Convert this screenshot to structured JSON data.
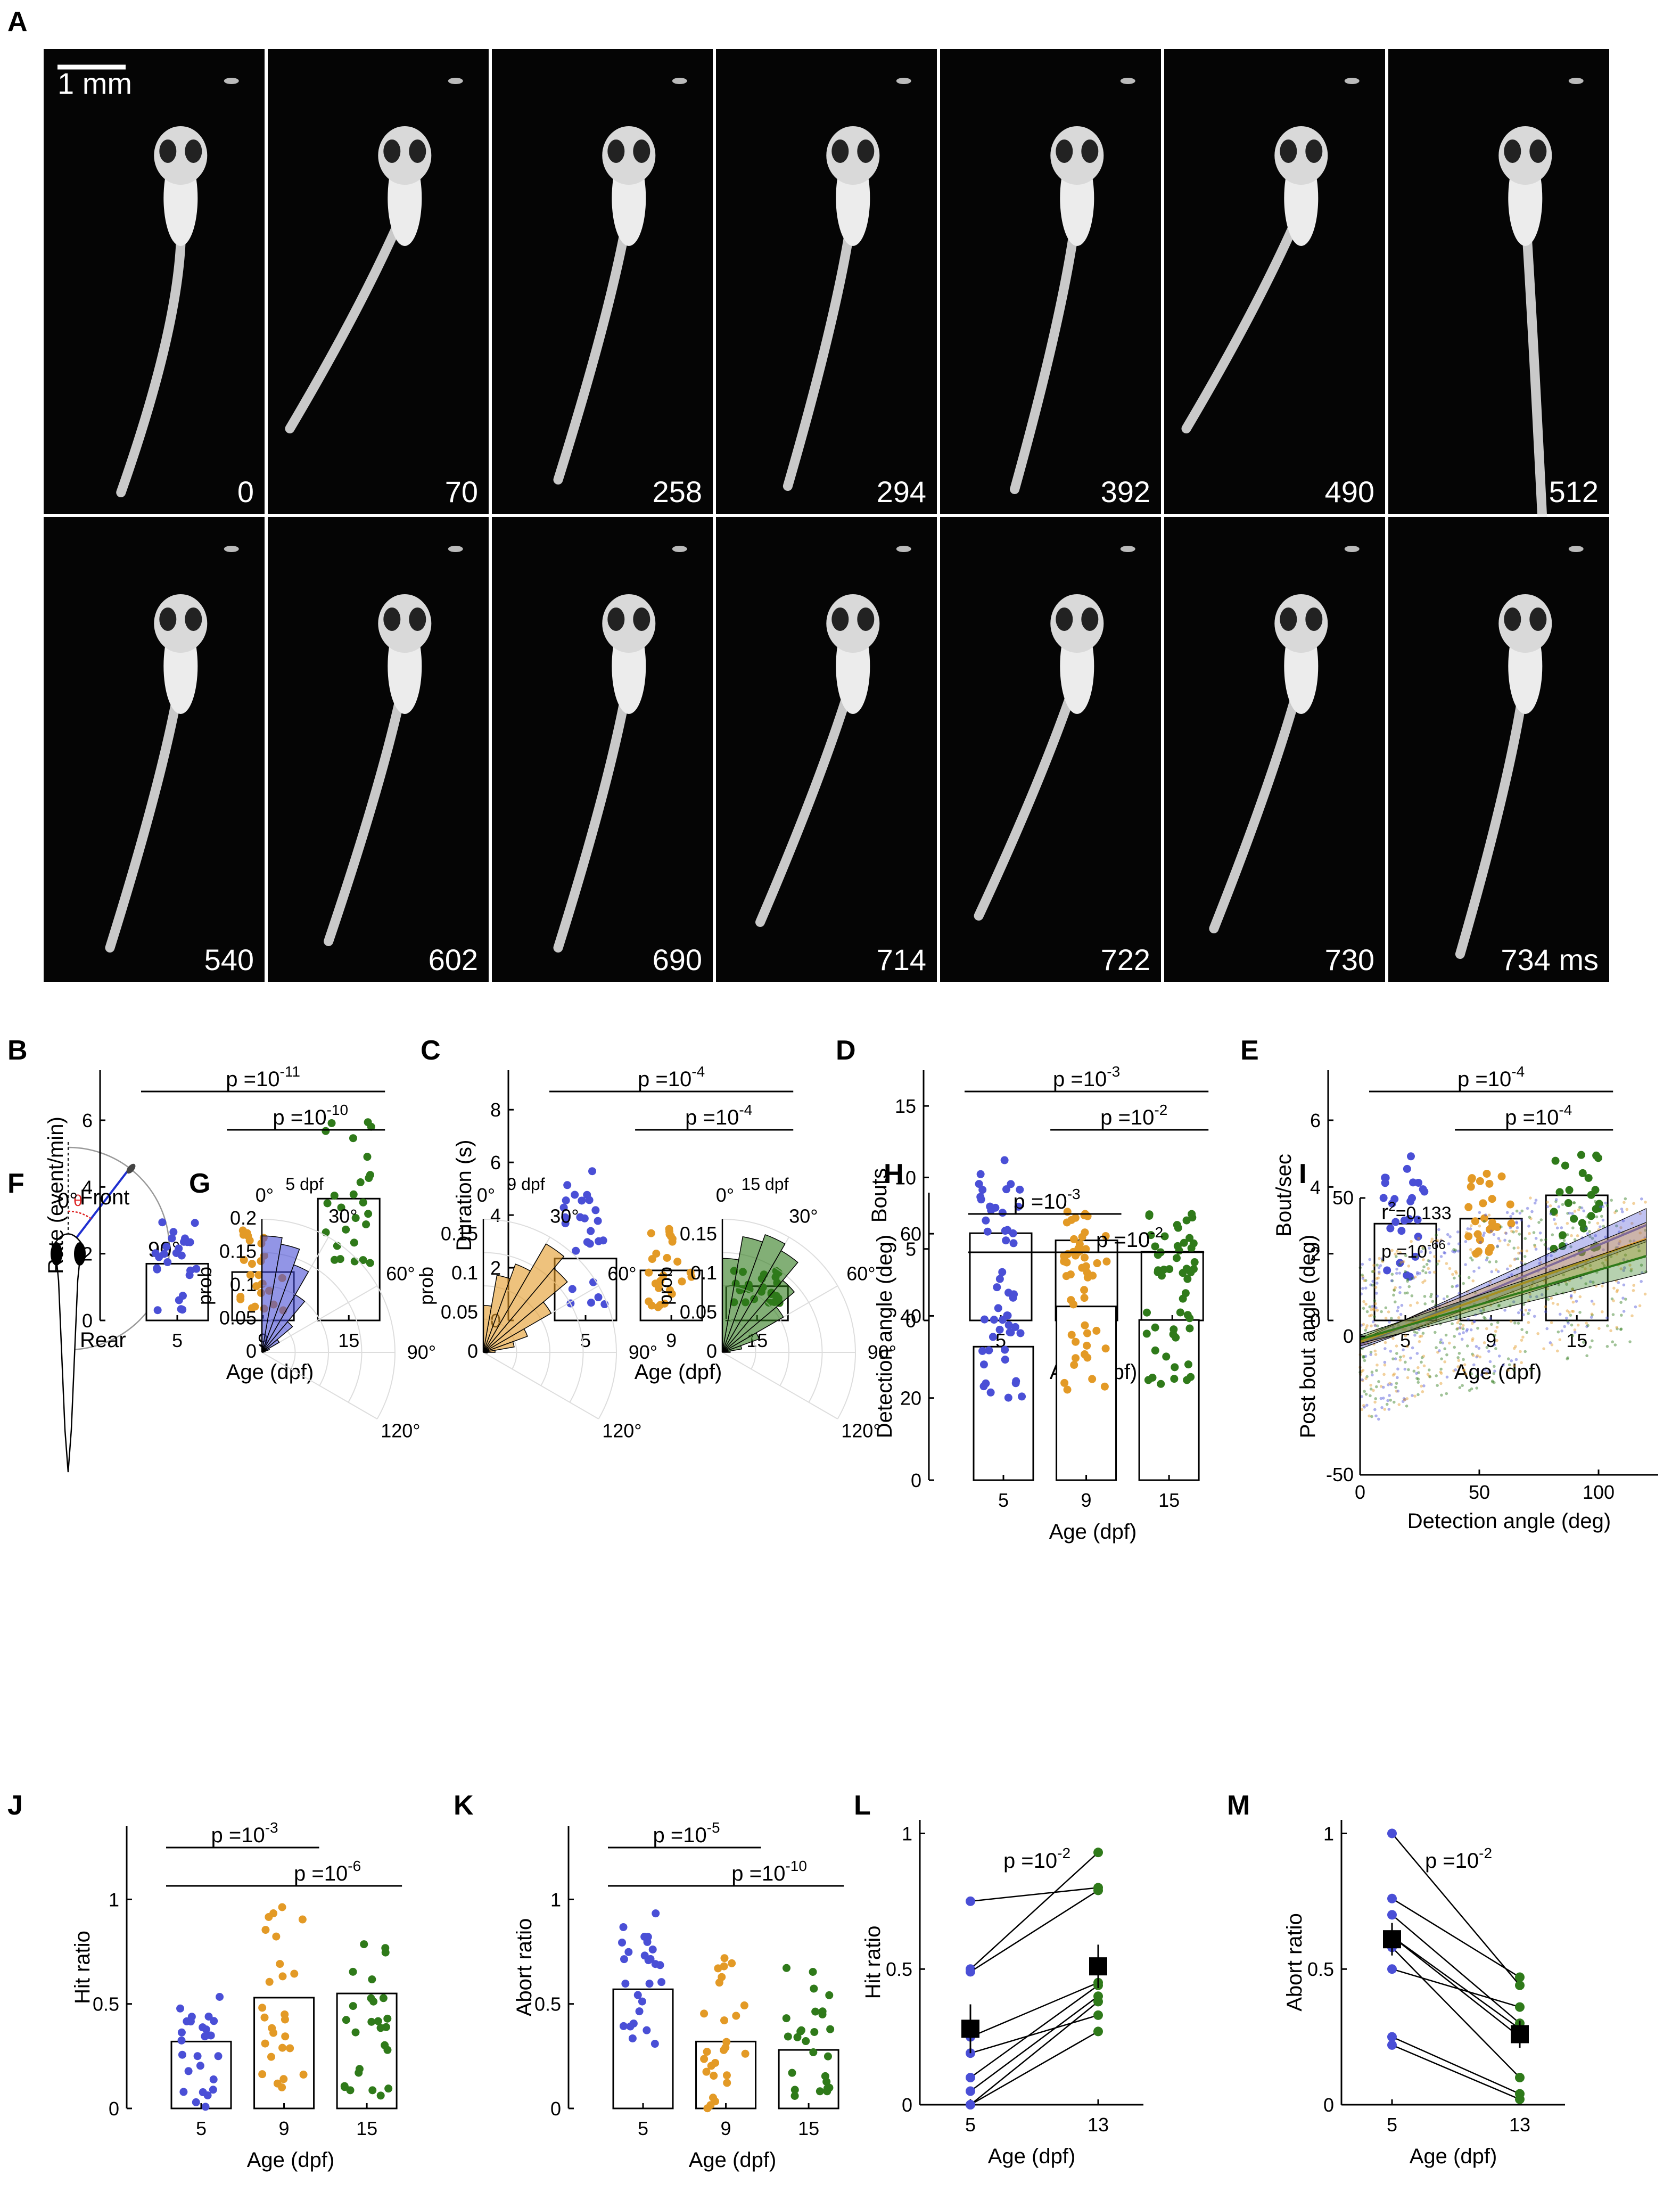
{
  "colors": {
    "c5": "#4a4fd6",
    "c9": "#e39a26",
    "c15": "#2f7a1a",
    "black": "#000000",
    "fish": "#ececec"
  },
  "panel_letters": {
    "A": "A",
    "B": "B",
    "C": "C",
    "D": "D",
    "E": "E",
    "F": "F",
    "G": "G",
    "H": "H",
    "I": "I",
    "J": "J",
    "K": "K",
    "L": "L",
    "M": "M"
  },
  "panelA": {
    "scale_label": "1 mm",
    "frame_times": [
      "0",
      "70",
      "258",
      "294",
      "392",
      "490",
      "512",
      "540",
      "602",
      "690",
      "714",
      "722",
      "730",
      "734 ms"
    ],
    "tail_curl": [
      0,
      1,
      0.2,
      0.1,
      0.05,
      1,
      -0.6,
      0.2,
      0.3,
      0.2,
      0.6,
      0.7,
      0.5,
      0.1
    ]
  },
  "schematicF": {
    "zero": "0°",
    "front": "Front",
    "ninety": "90°",
    "rear": "Rear",
    "theta": "θ"
  },
  "chart_data": [
    {
      "panel": "B",
      "type": "bar",
      "categories": [
        "5",
        "9",
        "15"
      ],
      "values": [
        1.7,
        1.45,
        3.65
      ],
      "xlabel": "Age (dpf)",
      "ylabel": "Rate (event/min)",
      "ylim": [
        0,
        7.5
      ],
      "yticks": [
        "0",
        "2",
        "4",
        "6"
      ],
      "pvalues": [
        {
          "text": "p =10",
          "exp": "-11",
          "from": 0,
          "to": 2
        },
        {
          "text": "p =10",
          "exp": "-10",
          "from": 1,
          "to": 2
        }
      ],
      "spread": [
        [
          0.3,
          3.2
        ],
        [
          0.3,
          2.8
        ],
        [
          1.5,
          6.0
        ]
      ]
    },
    {
      "panel": "C",
      "type": "bar",
      "categories": [
        "5",
        "9",
        "15"
      ],
      "values": [
        2.35,
        1.9,
        1.3
      ],
      "xlabel": "Age (dpf)",
      "ylabel": "Duration (s)",
      "ylim": [
        0,
        9.5
      ],
      "yticks": [
        "0",
        "2",
        "4",
        "6",
        "8"
      ],
      "pvalues": [
        {
          "text": "p =10",
          "exp": "-4",
          "from": 0,
          "to": 2
        },
        {
          "text": "p =10",
          "exp": "-4",
          "from": 1,
          "to": 2
        }
      ],
      "spread": [
        [
          0.6,
          6.2
        ],
        [
          0.5,
          3.6
        ],
        [
          0.6,
          1.9
        ]
      ]
    },
    {
      "panel": "D",
      "type": "bar",
      "categories": [
        "5",
        "9",
        "15"
      ],
      "values": [
        6.1,
        5.6,
        4.8
      ],
      "xlabel": "Age (dpf)",
      "ylabel": "Bouts",
      "ylim": [
        0,
        17.5
      ],
      "yticks": [
        "0",
        "5",
        "10",
        "15"
      ],
      "pvalues": [
        {
          "text": "p =10",
          "exp": "-3",
          "from": 0,
          "to": 2
        },
        {
          "text": "p =10",
          "exp": "-2",
          "from": 1,
          "to": 2
        }
      ],
      "spread": [
        [
          1.8,
          12.2
        ],
        [
          3.0,
          7.8
        ],
        [
          3.3,
          7.5
        ]
      ]
    },
    {
      "panel": "E",
      "type": "bar",
      "categories": [
        "5",
        "9",
        "15"
      ],
      "values": [
        2.9,
        3.05,
        3.75
      ],
      "xlabel": "Age (dpf)",
      "ylabel": "Bout/sec",
      "ylim": [
        0,
        7.5
      ],
      "yticks": [
        "0",
        "2",
        "4",
        "6"
      ],
      "pvalues": [
        {
          "text": "p =10",
          "exp": "-4",
          "from": 0,
          "to": 2
        },
        {
          "text": "p =10",
          "exp": "-4",
          "from": 1,
          "to": 2
        }
      ],
      "spread": [
        [
          1.3,
          5.3
        ],
        [
          2.0,
          4.5
        ],
        [
          2.0,
          5.0
        ]
      ]
    },
    {
      "panel": "H",
      "type": "bar",
      "categories": [
        "5",
        "9",
        "15"
      ],
      "values": [
        32.5,
        42.3,
        39.0
      ],
      "xlabel": "Age (dpf)",
      "ylabel": "Detection angle (deg)",
      "ylim": [
        0,
        70
      ],
      "yticks": [
        "0",
        "20",
        "40",
        "60"
      ],
      "pvalues": [
        {
          "text": "p =10",
          "exp": "-3",
          "from": 0,
          "to": 1
        },
        {
          "text": "p =10",
          "exp": "-2",
          "from": 0,
          "to": 2
        }
      ],
      "spread": [
        [
          20,
          47
        ],
        [
          22,
          59
        ],
        [
          23,
          51
        ]
      ]
    },
    {
      "panel": "J",
      "type": "bar",
      "categories": [
        "5",
        "9",
        "15"
      ],
      "values": [
        0.32,
        0.53,
        0.55
      ],
      "xlabel": "Age (dpf)",
      "ylabel": "Hit ratio",
      "ylim": [
        0,
        1.35
      ],
      "yticks": [
        "0",
        "0.5",
        "1"
      ],
      "pvalues": [
        {
          "text": "p =10",
          "exp": "-3",
          "from": 0,
          "to": 1
        },
        {
          "text": "p =10",
          "exp": "-6",
          "from": 0,
          "to": 2
        }
      ],
      "spread": [
        [
          0.0,
          0.59
        ],
        [
          0.1,
          1.0
        ],
        [
          0.05,
          0.8
        ]
      ]
    },
    {
      "panel": "K",
      "type": "bar",
      "categories": [
        "5",
        "9",
        "15"
      ],
      "values": [
        0.57,
        0.32,
        0.28
      ],
      "xlabel": "Age (dpf)",
      "ylabel": "Abort ratio",
      "ylim": [
        0,
        1.35
      ],
      "yticks": [
        "0",
        "0.5",
        "1"
      ],
      "pvalues": [
        {
          "text": "p =10",
          "exp": "-5",
          "from": 0,
          "to": 1
        },
        {
          "text": "p =10",
          "exp": "-10",
          "from": 0,
          "to": 2
        }
      ],
      "spread": [
        [
          0.3,
          1.0
        ],
        [
          0.0,
          0.75
        ],
        [
          0.05,
          0.7
        ]
      ]
    },
    {
      "panel": "G",
      "type": "polar-histogram",
      "bins_deg": [
        0,
        10,
        20,
        30,
        40,
        50,
        60,
        70,
        80,
        90,
        100,
        110,
        120
      ],
      "titles": [
        "5 dpf",
        "9 dpf",
        "15 dpf"
      ],
      "ylabel": "prob",
      "angle_labels": [
        "0°",
        "30°",
        "60°",
        "90°",
        "120°"
      ],
      "series": [
        {
          "name": "5 dpf",
          "rticks": [
            "0",
            "0.05",
            "0.1",
            "0.15",
            "0.2"
          ],
          "rmax": 0.2,
          "values": [
            0.175,
            0.165,
            0.14,
            0.1,
            0.06,
            0.03,
            0.012,
            0.005,
            0.002,
            0,
            0,
            0
          ]
        },
        {
          "name": "9 dpf",
          "rticks": [
            "0",
            "0.05",
            "0.1",
            "0.15"
          ],
          "rmax": 0.17,
          "values": [
            0.06,
            0.1,
            0.12,
            0.16,
            0.14,
            0.1,
            0.06,
            0.04,
            0.015,
            0.005,
            0,
            0
          ]
        },
        {
          "name": "15 dpf",
          "rticks": [
            "0",
            "0.05",
            "0.1",
            "0.15"
          ],
          "rmax": 0.17,
          "values": [
            0.12,
            0.15,
            0.16,
            0.15,
            0.12,
            0.09,
            0.05,
            0.025,
            0.01,
            0,
            0,
            0
          ]
        }
      ]
    },
    {
      "panel": "I",
      "type": "scatter",
      "xlabel": "Detection angle (deg)",
      "ylabel": "Post bout angle (deg)",
      "xlim": [
        0,
        125
      ],
      "ylim": [
        -50,
        50
      ],
      "xticks": [
        "0",
        "50",
        "100"
      ],
      "yticks": [
        "-50",
        "0",
        "50"
      ],
      "r2_text": "r",
      "r2_sup": "2",
      "r2_value": "=0.133",
      "p_text": "p =10",
      "p_exp": "-66",
      "fits": [
        {
          "name": "5 dpf",
          "slope": 0.36,
          "intercept": -3
        },
        {
          "name": "9 dpf",
          "slope": 0.31,
          "intercept": -2
        },
        {
          "name": "15 dpf",
          "slope": 0.25,
          "intercept": -1
        }
      ]
    },
    {
      "panel": "L",
      "type": "paired",
      "xlabel": "Age (dpf)",
      "ylabel": "Hit ratio",
      "categories": [
        "5",
        "13"
      ],
      "ylim": [
        0,
        1.05
      ],
      "yticks": [
        "0",
        "0.5",
        "1"
      ],
      "ptext": "p =10",
      "pexp": "-2",
      "pairs": [
        [
          0.75,
          0.8
        ],
        [
          0.5,
          0.93
        ],
        [
          0.49,
          0.79
        ],
        [
          0.25,
          0.45
        ],
        [
          0.19,
          0.33
        ],
        [
          0.1,
          0.44
        ],
        [
          0.05,
          0.4
        ],
        [
          0.0,
          0.27
        ],
        [
          0.0,
          0.38
        ]
      ],
      "means": [
        0.28,
        0.51
      ],
      "err": [
        0.09,
        0.08
      ]
    },
    {
      "panel": "M",
      "type": "paired",
      "xlabel": "Age (dpf)",
      "ylabel": "Abort ratio",
      "categories": [
        "5",
        "13"
      ],
      "ylim": [
        0,
        1.05
      ],
      "yticks": [
        "0",
        "0.5",
        "1"
      ],
      "ptext": "p =10",
      "pexp": "-2",
      "pairs": [
        [
          1.0,
          0.44
        ],
        [
          0.76,
          0.47
        ],
        [
          0.7,
          0.3
        ],
        [
          0.62,
          0.25
        ],
        [
          0.58,
          0.1
        ],
        [
          0.5,
          0.36
        ],
        [
          0.25,
          0.04
        ],
        [
          0.22,
          0.02
        ],
        [
          0.62,
          0.28
        ]
      ],
      "means": [
        0.61,
        0.26
      ],
      "err": [
        0.06,
        0.05
      ]
    }
  ]
}
